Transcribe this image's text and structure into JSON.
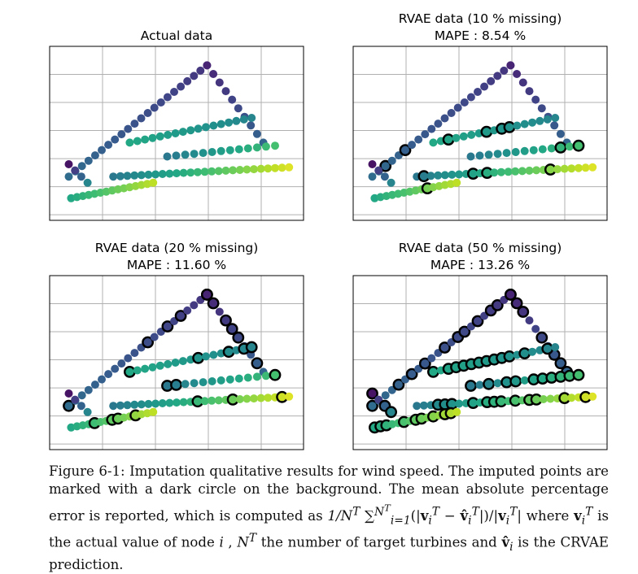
{
  "chart_data": [
    {
      "type": "scatter",
      "title": "Actual data",
      "subtitle": "",
      "highlighted_count": 0
    },
    {
      "type": "scatter",
      "title": "RVAE data (10  % missing)",
      "subtitle": "MAPE : 8.54 %",
      "mape_percent": 8.54,
      "missing_percent": 10,
      "highlighted_count": 13
    },
    {
      "type": "scatter",
      "title": "RVAE data (20  % missing)",
      "subtitle": "MAPE : 11.60 %",
      "mape_percent": 11.6,
      "missing_percent": 20,
      "highlighted_count": 26
    },
    {
      "type": "scatter",
      "title": "RVAE data (50  % missing)",
      "subtitle": "MAPE : 13.26 %",
      "mape_percent": 13.26,
      "missing_percent": 50,
      "highlighted_count": 64
    }
  ],
  "caption": {
    "label": "Figure 6-1:",
    "t1": "Imputation qualitative results for wind speed. The imputed points are marked with a dark circle on the background. The mean absolute percentage error is reported, which is computed as ",
    "f1": "1/N",
    "f1sup": "T",
    "f2": " ∑",
    "f2sup": "N",
    "f2supsup": "T",
    "f2sub": "i=1",
    "f3": "(|",
    "v1": "v",
    "v1sub": "i",
    "v1sup": "T",
    "f4": " − ",
    "v2": "v̂",
    "v2sub": "i",
    "v2sup": "T",
    "f5": "|)/|",
    "v3": "v",
    "v3sub": "i",
    "v3sup": "T",
    "f6": "|",
    "t2": " where ",
    "t3": " is the actual value of node ",
    "node_i": "i",
    "t4": " , ",
    "nt": "N",
    "ntsup": "T",
    "t5": " the number of target turbines and ",
    "t6": " is the CRVAE prediction."
  }
}
